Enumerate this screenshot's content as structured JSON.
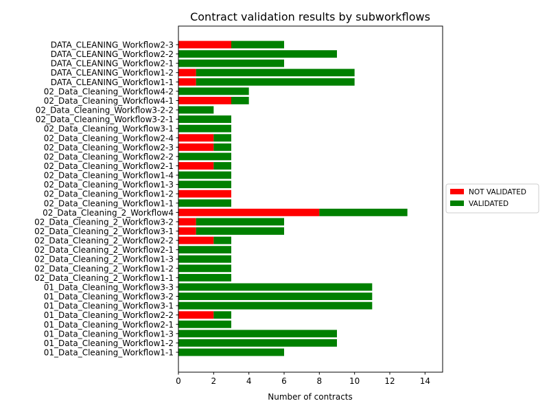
{
  "chart_data": {
    "type": "bar",
    "orientation": "horizontal",
    "stacked": true,
    "title": "Contract validation results by subworkflows",
    "xlabel": "Number of contracts",
    "ylabel": "",
    "xlim": [
      0,
      15
    ],
    "xticks": [
      0,
      2,
      4,
      6,
      8,
      10,
      12,
      14
    ],
    "grid": false,
    "legend_placement": "center-right",
    "categories": [
      "01_Data_Cleaning_Workflow1-1",
      "01_Data_Cleaning_Workflow1-2",
      "01_Data_Cleaning_Workflow1-3",
      "01_Data_Cleaning_Workflow2-1",
      "01_Data_Cleaning_Workflow2-2",
      "01_Data_Cleaning_Workflow3-1",
      "01_Data_Cleaning_Workflow3-2",
      "01_Data_Cleaning_Workflow3-3",
      "02_Data_Cleaning_2_Workflow1-1",
      "02_Data_Cleaning_2_Workflow1-2",
      "02_Data_Cleaning_2_Workflow1-3",
      "02_Data_Cleaning_2_Workflow2-1",
      "02_Data_Cleaning_2_Workflow2-2",
      "02_Data_Cleaning_2_Workflow3-1",
      "02_Data_Cleaning_2_Workflow3-2",
      "02_Data_Cleaning_2_Workflow4",
      "02_Data_Cleaning_Workflow1-1",
      "02_Data_Cleaning_Workflow1-2",
      "02_Data_Cleaning_Workflow1-3",
      "02_Data_Cleaning_Workflow1-4",
      "02_Data_Cleaning_Workflow2-1",
      "02_Data_Cleaning_Workflow2-2",
      "02_Data_Cleaning_Workflow2-3",
      "02_Data_Cleaning_Workflow2-4",
      "02_Data_Cleaning_Workflow3-1",
      "02_Data_Cleaning_Workflow3-2-1",
      "02_Data_Cleaning_Workflow3-2-2",
      "02_Data_Cleaning_Workflow4-1",
      "02_Data_Cleaning_Workflow4-2",
      "DATA_CLEANING_Workflow1-1",
      "DATA_CLEANING_Workflow1-2",
      "DATA_CLEANING_Workflow2-1",
      "DATA_CLEANING_Workflow2-2",
      "DATA_CLEANING_Workflow2-3"
    ],
    "series": [
      {
        "name": "NOT VALIDATED",
        "color": "#ff0000",
        "values": [
          0,
          0,
          0,
          0,
          2,
          0,
          0,
          0,
          0,
          0,
          0,
          0,
          2,
          1,
          1,
          8,
          0,
          3,
          0,
          0,
          2,
          0,
          2,
          2,
          0,
          0,
          0,
          3,
          0,
          1,
          1,
          0,
          0,
          3
        ]
      },
      {
        "name": "VALIDATED",
        "color": "#008000",
        "values": [
          6,
          9,
          9,
          3,
          1,
          11,
          11,
          11,
          3,
          3,
          3,
          3,
          1,
          5,
          5,
          5,
          3,
          0,
          3,
          3,
          1,
          3,
          1,
          1,
          3,
          3,
          2,
          1,
          4,
          9,
          9,
          6,
          9,
          3
        ]
      }
    ]
  }
}
